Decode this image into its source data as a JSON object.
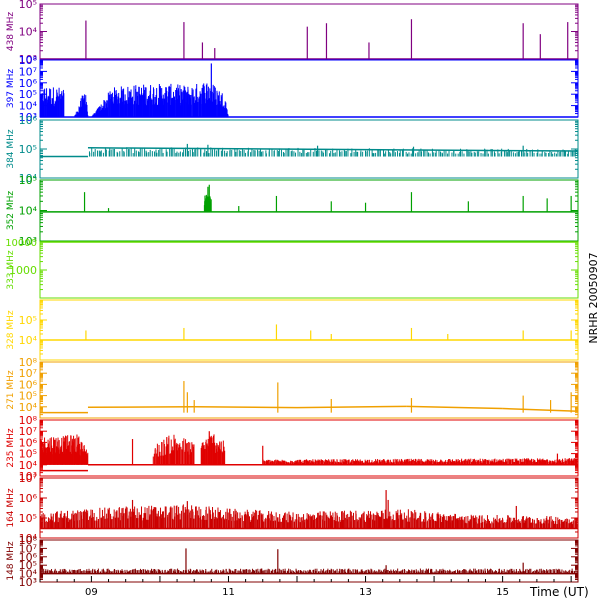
{
  "chart_data": {
    "type": "line",
    "stacked_panels": true,
    "side_label": "NRHR 20050907",
    "xlabel": "Time (UT)",
    "x_ticks": [
      "09",
      "11",
      "13",
      "15"
    ],
    "xlim_hours": [
      8.25,
      16.1
    ],
    "panels": [
      {
        "name": "438 MHz",
        "color": "#800080",
        "scale": "log",
        "ylim": [
          1000,
          100000
        ],
        "baseline": 1000,
        "tick_labels": [
          {
            "v": 100000,
            "t": "10⁵"
          },
          {
            "v": 10000,
            "t": "10⁴"
          },
          {
            "v": 1000,
            "t": "10³"
          }
        ],
        "base_segments": [
          [
            8.25,
            1000,
            16.1,
            1000
          ]
        ],
        "spikes": [
          [
            8.92,
            25000
          ],
          [
            10.35,
            22000
          ],
          [
            10.62,
            4000
          ],
          [
            10.8,
            2500
          ],
          [
            12.15,
            15000
          ],
          [
            12.43,
            20000
          ],
          [
            13.05,
            4000
          ],
          [
            13.67,
            28000
          ],
          [
            15.3,
            20000
          ],
          [
            15.55,
            8000
          ],
          [
            15.95,
            22000
          ]
        ],
        "bursts": []
      },
      {
        "name": "397 MHz",
        "color": "#0000ff",
        "scale": "log",
        "ylim": [
          1000,
          100000000
        ],
        "baseline": 1000,
        "tick_labels": [
          {
            "v": 100000000,
            "t": "10⁸"
          },
          {
            "v": 10000000,
            "t": "10⁷"
          },
          {
            "v": 1000000,
            "t": "10⁶"
          },
          {
            "v": 100000,
            "t": "10⁵"
          },
          {
            "v": 10000,
            "t": "10⁴"
          },
          {
            "v": 1000,
            "t": "10³"
          }
        ],
        "base_segments": [
          [
            8.25,
            1000,
            16.1,
            1000
          ]
        ],
        "spikes": [
          [
            10.75,
            50000000
          ]
        ],
        "bursts": [
          {
            "x": [
              8.25,
              8.3,
              8.6,
              8.6,
              8.75,
              8.9,
              8.92,
              8.95,
              9.0,
              9.3,
              9.6,
              9.9,
              10.2,
              10.45,
              10.7,
              10.85,
              10.95,
              11.0
            ],
            "y": [
              40000,
              600000,
              400000,
              1000,
              1000,
              300000,
              800000,
              1000,
              1000,
              400000,
              700000,
              900000,
              800000,
              600000,
              2000000,
              400000,
              100000,
              1000
            ],
            "density": 400
          }
        ]
      },
      {
        "name": "384 MHz",
        "color": "#008b8b",
        "scale": "log",
        "ylim": [
          10000,
          1000000
        ],
        "baseline": 55000,
        "tick_labels": [
          {
            "v": 1000000,
            "t": "10⁶"
          },
          {
            "v": 100000,
            "t": "10⁵"
          },
          {
            "v": 10000,
            "t": "10⁴"
          }
        ],
        "base_segments": [
          [
            8.25,
            55000,
            8.95,
            55000
          ],
          [
            8.95,
            110000,
            16.1,
            85000
          ]
        ],
        "spikes": [
          [
            10.4,
            150000
          ],
          [
            10.7,
            140000
          ],
          [
            12.3,
            130000
          ],
          [
            13.7,
            120000
          ],
          [
            15.3,
            130000
          ]
        ],
        "bursts": [
          {
            "x": [
              8.95,
              16.1
            ],
            "y": [
              120000,
              100000
            ],
            "density": 300
          }
        ]
      },
      {
        "name": "352 MHz",
        "color": "#00a000",
        "scale": "log",
        "ylim": [
          1000,
          100000
        ],
        "baseline": 9000,
        "tick_labels": [
          {
            "v": 100000,
            "t": "10⁵"
          },
          {
            "v": 10000,
            "t": "10⁴"
          },
          {
            "v": 1000,
            "t": "10³"
          }
        ],
        "base_segments": [
          [
            8.25,
            9000,
            16.1,
            9000
          ]
        ],
        "spikes": [
          [
            8.9,
            40000
          ],
          [
            9.25,
            12000
          ],
          [
            10.65,
            15000
          ],
          [
            10.7,
            60000
          ],
          [
            10.72,
            70000
          ],
          [
            11.15,
            14000
          ],
          [
            11.7,
            30000
          ],
          [
            12.5,
            20000
          ],
          [
            13.0,
            18000
          ],
          [
            13.67,
            40000
          ],
          [
            14.5,
            20000
          ],
          [
            15.3,
            30000
          ],
          [
            15.65,
            25000
          ],
          [
            16.0,
            30000
          ]
        ],
        "bursts": [
          {
            "x": [
              10.65,
              10.75
            ],
            "y": [
              40000,
              30000
            ],
            "density": 30
          }
        ]
      },
      {
        "name": "333 MHz",
        "color": "#66dd00",
        "scale": "log",
        "ylim": [
          100,
          10000
        ],
        "baseline": 10000,
        "tick_labels": [
          {
            "v": 10000,
            "t": "10000"
          },
          {
            "v": 1000,
            "t": "1000"
          }
        ],
        "base_segments": [
          [
            8.25,
            10000,
            16.1,
            10000
          ]
        ],
        "spikes": [],
        "bursts": []
      },
      {
        "name": "328 MHz",
        "color": "#ffd700",
        "scale": "log",
        "ylim": [
          1000,
          1000000
        ],
        "baseline": 10000,
        "tick_labels": [
          {
            "v": 100000,
            "t": "10⁵"
          },
          {
            "v": 10000,
            "t": "10⁴"
          }
        ],
        "base_segments": [
          [
            8.25,
            10000,
            16.1,
            10000
          ]
        ],
        "spikes": [
          [
            8.92,
            30000
          ],
          [
            10.35,
            40000
          ],
          [
            11.7,
            60000
          ],
          [
            12.2,
            30000
          ],
          [
            12.5,
            20000
          ],
          [
            13.67,
            40000
          ],
          [
            14.2,
            20000
          ],
          [
            15.3,
            30000
          ],
          [
            16.0,
            30000
          ]
        ],
        "bursts": []
      },
      {
        "name": "271 MHz",
        "color": "#f0a000",
        "scale": "log",
        "ylim": [
          1000,
          100000000
        ],
        "baseline": 3000,
        "tick_labels": [
          {
            "v": 100000000,
            "t": "10⁸"
          },
          {
            "v": 10000000,
            "t": "10⁷"
          },
          {
            "v": 1000000,
            "t": "10⁶"
          },
          {
            "v": 100000,
            "t": "10⁵"
          },
          {
            "v": 10000,
            "t": "10⁴"
          }
        ],
        "base_segments": [
          [
            8.25,
            3000,
            8.95,
            3000
          ],
          [
            8.95,
            9000,
            10.5,
            10000
          ],
          [
            10.5,
            10000,
            12.0,
            8500
          ],
          [
            12.0,
            8500,
            13.6,
            11000
          ],
          [
            13.6,
            11000,
            15.0,
            7000
          ],
          [
            15.0,
            7000,
            16.1,
            4000
          ]
        ],
        "spikes": [
          [
            10.35,
            2000000
          ],
          [
            10.4,
            200000
          ],
          [
            10.5,
            40000
          ],
          [
            11.72,
            1500000
          ],
          [
            12.5,
            50000
          ],
          [
            13.67,
            60000
          ],
          [
            15.3,
            100000
          ],
          [
            15.7,
            40000
          ],
          [
            16.0,
            200000
          ]
        ],
        "bursts": []
      },
      {
        "name": "235 MHz",
        "color": "#e00000",
        "scale": "log",
        "ylim": [
          1000,
          100000000
        ],
        "baseline": 10000,
        "tick_labels": [
          {
            "v": 100000000,
            "t": "10⁸"
          },
          {
            "v": 10000000,
            "t": "10⁷"
          },
          {
            "v": 1000000,
            "t": "10⁶"
          },
          {
            "v": 100000,
            "t": "10⁵"
          },
          {
            "v": 10000,
            "t": "10⁴"
          },
          {
            "v": 1000,
            "t": "10³"
          }
        ],
        "base_segments": [
          [
            8.25,
            3000,
            8.95,
            3000
          ],
          [
            8.95,
            10000,
            16.1,
            10000
          ]
        ],
        "spikes": [
          [
            9.6,
            2000000
          ],
          [
            10.1,
            3000000
          ],
          [
            10.72,
            10000000
          ],
          [
            11.5,
            500000
          ],
          [
            15.8,
            100000
          ]
        ],
        "bursts": [
          {
            "x": [
              8.25,
              8.4,
              8.6,
              8.8,
              8.95
            ],
            "y": [
              3000000,
              5000000,
              4000000,
              6000000,
              200000
            ],
            "density": 120
          },
          {
            "x": [
              9.9,
              10.2,
              10.5
            ],
            "y": [
              500000,
              8000000,
              1000000
            ],
            "density": 60
          },
          {
            "x": [
              10.6,
              10.8,
              10.95
            ],
            "y": [
              2000000,
              10000000,
              1000000
            ],
            "density": 50
          },
          {
            "x": [
              11.5,
              16.1
            ],
            "y": [
              30000,
              40000
            ],
            "density": 500
          }
        ]
      },
      {
        "name": "164 MHz",
        "color": "#cc0000",
        "scale": "log",
        "ylim": [
          10000,
          10000000
        ],
        "baseline": 30000,
        "tick_labels": [
          {
            "v": 10000000,
            "t": "10⁷"
          },
          {
            "v": 1000000,
            "t": "10⁶"
          },
          {
            "v": 100000,
            "t": "10⁵"
          },
          {
            "v": 10000,
            "t": "10⁴"
          }
        ],
        "base_segments": [
          [
            8.25,
            30000,
            16.1,
            30000
          ]
        ],
        "spikes": [
          [
            9.6,
            800000
          ],
          [
            10.4,
            700000
          ],
          [
            13.3,
            2500000
          ],
          [
            13.33,
            800000
          ],
          [
            15.2,
            400000
          ]
        ],
        "bursts": [
          {
            "x": [
              8.25,
              9.5,
              10.5,
              11.0,
              12.0,
              13.5,
              14.5,
              16.1
            ],
            "y": [
              200000,
              400000,
              500000,
              300000,
              200000,
              300000,
              150000,
              120000
            ],
            "density": 700
          }
        ]
      },
      {
        "name": "148 MHz",
        "color": "#800000",
        "scale": "log",
        "ylim": [
          1000,
          100000000
        ],
        "baseline": 10000,
        "tick_labels": [
          {
            "v": 100000000,
            "t": "10⁸"
          },
          {
            "v": 10000000,
            "t": "10⁷"
          },
          {
            "v": 1000000,
            "t": "10⁶"
          },
          {
            "v": 100000,
            "t": "10⁵"
          },
          {
            "v": 10000,
            "t": "10⁴"
          },
          {
            "v": 1000,
            "t": "10³"
          }
        ],
        "base_segments": [
          [
            8.25,
            10000,
            16.1,
            10000
          ]
        ],
        "spikes": [
          [
            10.38,
            10000000
          ],
          [
            11.72,
            8000000
          ],
          [
            13.3,
            100000
          ],
          [
            15.3,
            200000
          ]
        ],
        "bursts": [
          {
            "x": [
              8.25,
              16.1
            ],
            "y": [
              40000,
              40000
            ],
            "density": 500
          }
        ]
      }
    ]
  }
}
